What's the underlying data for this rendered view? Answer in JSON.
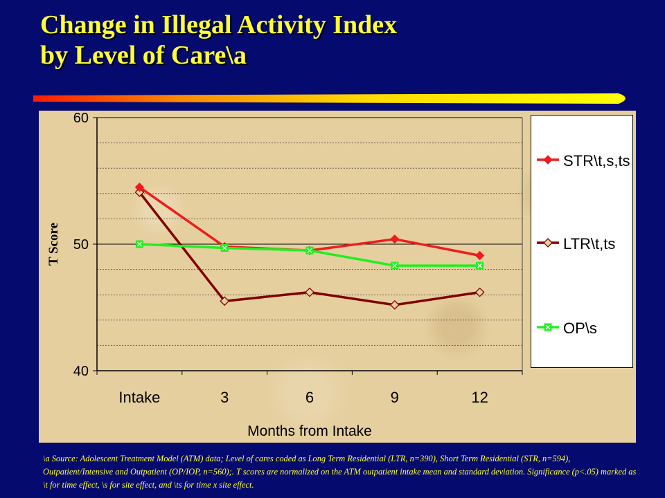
{
  "slide": {
    "title_line1": "Change in Illegal Activity Index",
    "title_line2": "by Level of Care\\a",
    "footnote": "\\a Source:  Adolescent Treatment Model (ATM) data; Level of cares coded as Long Term Residential (LTR, n=390), Short Term Residential (STR, n=594), Outpatient/Intensive  and Outpatient (OP/IOP, n=560);.  T scores are normalized on the ATM outpatient intake mean and standard deviation.  Significance  (p<.05) marked as  \\t for time effect,  \\s for site effect,  and \\ts for time x site effect."
  },
  "colors": {
    "background": "#050a6e",
    "title": "#ffff33",
    "panel": "#e6cf9f"
  },
  "chart_data": {
    "type": "line",
    "xlabel": "Months from Intake",
    "ylabel": "T Score",
    "categories": [
      "Intake",
      "3",
      "6",
      "9",
      "12"
    ],
    "ylim": [
      40,
      60
    ],
    "yticks": [
      40,
      50,
      60
    ],
    "minor_grid_step": 2,
    "grid": true,
    "legend_position": "right",
    "series": [
      {
        "name": "STR\\t,s,ts",
        "color": "#ee1c1c",
        "marker": "diamond-filled",
        "values": [
          54.5,
          49.8,
          49.5,
          50.4,
          49.1
        ]
      },
      {
        "name": "LTR\\t,ts",
        "color": "#800000",
        "marker": "diamond-open",
        "values": [
          54.1,
          45.5,
          46.2,
          45.2,
          46.2
        ]
      },
      {
        "name": "OP\\s",
        "color": "#22ee22",
        "marker": "square-x",
        "values": [
          50.0,
          49.7,
          49.5,
          48.3,
          48.3
        ]
      }
    ]
  }
}
